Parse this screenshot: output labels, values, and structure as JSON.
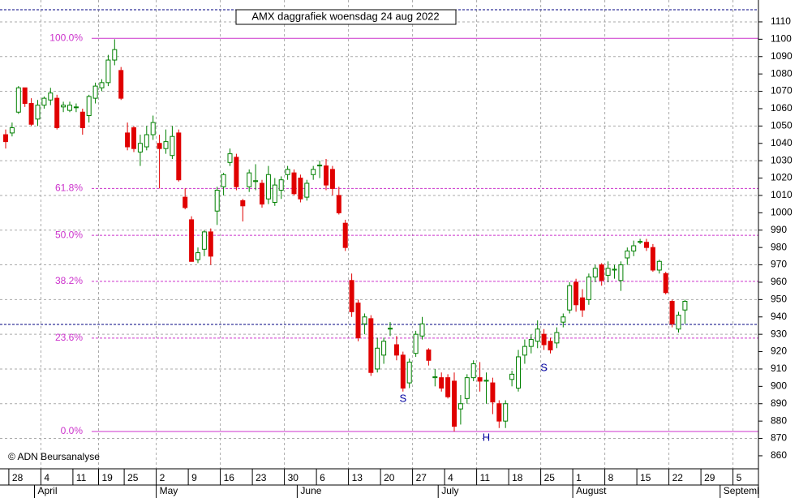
{
  "chart_data": {
    "type": "candlestick",
    "title": "AMX daggrafiek woensdag 24 aug 2022",
    "copyright": "© ADN Beursanalyse",
    "categories": [
      null,
      "28",
      null,
      null,
      null,
      null,
      "4",
      null,
      null,
      null,
      null,
      "11",
      null,
      null,
      null,
      "19",
      null,
      null,
      null,
      "25",
      null,
      null,
      null,
      null,
      "2",
      null,
      null,
      null,
      null,
      "9",
      null,
      null,
      null,
      null,
      "16",
      null,
      null,
      null,
      null,
      "23",
      null,
      null,
      null,
      null,
      "30",
      null,
      null,
      null,
      null,
      "6",
      null,
      null,
      null,
      null,
      "13",
      null,
      null,
      null,
      null,
      "20",
      null,
      null,
      null,
      null,
      "27",
      null,
      null,
      null,
      null,
      "4",
      null,
      null,
      null,
      null,
      "11",
      null,
      null,
      null,
      null,
      "18",
      null,
      null,
      null,
      null,
      "25",
      null,
      null,
      null,
      null,
      "1",
      null,
      null,
      null,
      null,
      "8",
      null,
      null,
      null,
      null,
      "15",
      null,
      null,
      null,
      null,
      "22",
      null,
      null,
      null,
      null,
      "29",
      null,
      null,
      null,
      null,
      "5",
      null,
      null,
      null
    ],
    "months": [
      {
        "value": 5,
        "label": "April"
      },
      {
        "value": 24,
        "label": "May"
      },
      {
        "value": 46,
        "label": "June"
      },
      {
        "value": 68,
        "label": "July"
      },
      {
        "value": 89,
        "label": "August"
      },
      {
        "value": 112,
        "label": "September"
      }
    ],
    "open": [
      1045,
      1046,
      1058,
      1072,
      1063,
      1054,
      1062,
      1065,
      1066,
      1061,
      1059,
      1061,
      1058,
      1056,
      1066,
      1072,
      1075,
      1088,
      1082,
      1046,
      1049,
      1035,
      1038,
      1045,
      1040,
      1037,
      1033,
      1046,
      1009,
      996,
      973,
      979,
      989,
      1001,
      1015,
      1029,
      1032,
      1007,
      1015,
      1018,
      1017,
      1008,
      1006,
      1013,
      1022,
      1023,
      1020,
      1009,
      1022,
      1027,
      1027,
      1025,
      1010,
      994,
      961,
      948,
      936,
      939,
      910,
      918,
      933,
      924,
      918,
      902,
      919,
      929,
      921,
      905,
      905,
      905,
      903,
      887,
      893,
      905,
      905,
      903,
      902,
      890,
      880,
      904,
      899,
      918,
      923,
      926,
      930,
      926,
      925,
      937,
      944,
      960,
      951,
      950,
      963,
      970,
      964,
      967,
      961,
      974,
      978,
      983,
      983,
      980,
      967,
      965,
      949,
      933,
      944,
      null,
      null,
      null,
      null,
      null,
      null,
      null,
      null,
      null,
      null,
      null
    ],
    "high": [
      1048,
      1052,
      1073,
      1072,
      1066,
      1065,
      1067,
      1072,
      1068,
      1064,
      1064,
      1063,
      1060,
      1068,
      1075,
      1077,
      1091,
      1100,
      1084,
      1052,
      1050,
      1045,
      1050,
      1056,
      1045,
      1048,
      1050,
      1048,
      1014,
      998,
      980,
      990,
      991,
      1015,
      1023,
      1037,
      1034,
      1008,
      1025,
      1028,
      1019,
      1027,
      1020,
      1021,
      1027,
      1025,
      1022,
      1019,
      1027,
      1030,
      1031,
      1027,
      1015,
      996,
      965,
      950,
      942,
      941,
      928,
      928,
      937,
      929,
      920,
      916,
      932,
      940,
      922,
      910,
      908,
      907,
      908,
      895,
      907,
      915,
      914,
      908,
      905,
      892,
      892,
      909,
      921,
      927,
      930,
      938,
      933,
      928,
      934,
      942,
      960,
      962,
      956,
      965,
      970,
      971,
      972,
      970,
      972,
      980,
      984,
      985,
      985,
      982,
      973,
      966,
      950,
      943,
      950,
      null,
      null,
      null,
      null,
      null,
      null,
      null,
      null,
      null,
      null,
      null
    ],
    "low": [
      1037,
      1044,
      1057,
      1061,
      1050,
      1050,
      1060,
      1062,
      1048,
      1058,
      1058,
      1058,
      1045,
      1052,
      1063,
      1070,
      1073,
      1085,
      1065,
      1036,
      1035,
      1027,
      1036,
      1042,
      1014,
      1034,
      1031,
      1018,
      1002,
      972,
      971,
      975,
      970,
      993,
      1010,
      1027,
      1013,
      995,
      1012,
      1013,
      1003,
      1005,
      1004,
      1008,
      1019,
      1010,
      1006,
      1007,
      1019,
      1020,
      1013,
      1010,
      999,
      978,
      940,
      926,
      930,
      906,
      908,
      913,
      929,
      915,
      897,
      899,
      917,
      927,
      912,
      900,
      897,
      893,
      874,
      878,
      890,
      903,
      897,
      890,
      884,
      876,
      876,
      900,
      897,
      913,
      919,
      922,
      921,
      919,
      922,
      934,
      942,
      943,
      940,
      947,
      960,
      958,
      960,
      962,
      955,
      970,
      975,
      982,
      978,
      966,
      965,
      953,
      934,
      931,
      936,
      null,
      null,
      null,
      null,
      null,
      null,
      null,
      null,
      null,
      null,
      null
    ],
    "close": [
      1041,
      1049,
      1072,
      1063,
      1051,
      1062,
      1066,
      1069,
      1049,
      1062,
      1062,
      1061,
      1049,
      1067,
      1073,
      1075,
      1088,
      1094,
      1066,
      1038,
      1037,
      1040,
      1045,
      1052,
      1037,
      1041,
      1044,
      1019,
      1003,
      972,
      977,
      989,
      975,
      1013,
      1022,
      1034,
      1015,
      1004,
      1023,
      1018.5,
      1005,
      1022,
      1016,
      1019,
      1025,
      1011,
      1008,
      1017,
      1025,
      1027.5,
      1016,
      1014,
      1000,
      980,
      943,
      928,
      940,
      908,
      922,
      926,
      933.5,
      918,
      899,
      914,
      930,
      936,
      915,
      905.5,
      899,
      894,
      877,
      890,
      905,
      913,
      903,
      903.5,
      891,
      880,
      890,
      907,
      917,
      923,
      927,
      933,
      924,
      921,
      931,
      940,
      958,
      947,
      944,
      963,
      968,
      961,
      968,
      967.5,
      970,
      978,
      981,
      983.5,
      980,
      967,
      972,
      954,
      936,
      941,
      949,
      null,
      null,
      null,
      null,
      null,
      null,
      null,
      null,
      null,
      null,
      null
    ],
    "up_color": "#008000",
    "down_color": "#e00000",
    "ylim": [
      852.5,
      1122.6
    ],
    "yticks": [
      860,
      870,
      880,
      890,
      900,
      910,
      920,
      930,
      940,
      950,
      960,
      970,
      980,
      990,
      1000,
      1010,
      1020,
      1030,
      1040,
      1050,
      1060,
      1070,
      1080,
      1090,
      1100,
      1110
    ],
    "grid": true,
    "fib_color": "#cc33cc",
    "fib_levels": [
      {
        "label": "100.0%",
        "value": 1100.5,
        "style": "solid"
      },
      {
        "label": "61.8%",
        "value": 1014,
        "style": "dashed"
      },
      {
        "label": "50.0%",
        "value": 987,
        "style": "dashed"
      },
      {
        "label": "38.2%",
        "value": 960.5,
        "style": "dashed"
      },
      {
        "label": "23.6%",
        "value": 927.8,
        "style": "dashed"
      },
      {
        "label": "0.0%",
        "value": 874,
        "style": "solid"
      }
    ],
    "reference_lines": [
      {
        "value": 1117,
        "color": "#000080"
      },
      {
        "value": 935.7,
        "color": "#000080"
      }
    ],
    "annotations": [
      "S",
      "S",
      "H"
    ],
    "annotation_color": "#0000a0"
  }
}
